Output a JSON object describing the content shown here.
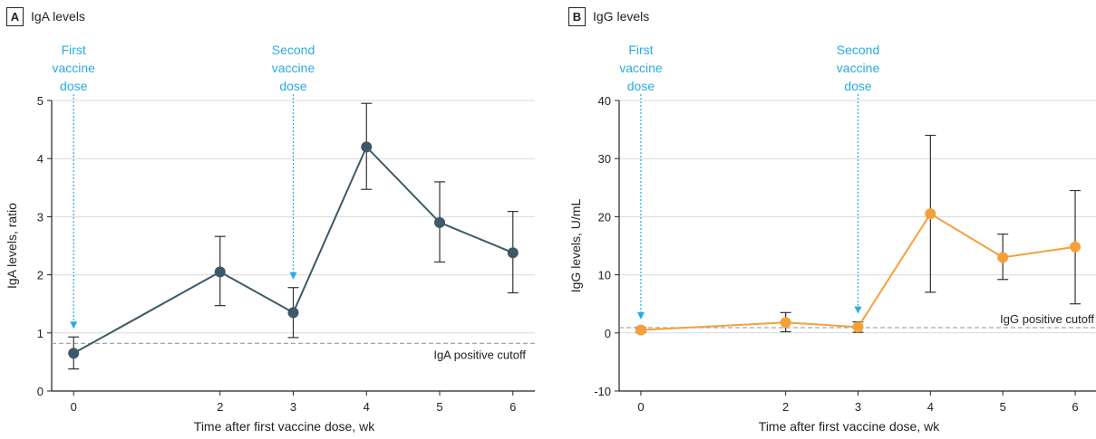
{
  "chart_data": [
    {
      "type": "line",
      "panel_letter": "A",
      "title": "IgA levels",
      "xlabel": "Time after first vaccine dose, wk",
      "ylabel": "IgA levels, ratio",
      "ylim": [
        0,
        5
      ],
      "xlim": [
        -0.3,
        6.3
      ],
      "x_ticks": [
        "0",
        "2",
        "3",
        "4",
        "5",
        "6"
      ],
      "y_ticks": [
        "0",
        "1",
        "2",
        "3",
        "4",
        "5"
      ],
      "grid": true,
      "color": "#3d5967",
      "series": [
        {
          "x": [
            0,
            2,
            3,
            4,
            5,
            6
          ],
          "values": [
            0.65,
            2.05,
            1.35,
            4.2,
            2.9,
            2.38
          ],
          "lower": [
            0.38,
            1.47,
            0.92,
            3.47,
            2.22,
            1.69
          ],
          "upper": [
            0.93,
            2.66,
            1.78,
            4.95,
            3.6,
            3.09
          ]
        }
      ],
      "cutoff": {
        "value": 0.82,
        "label": "IgA positive cutoff"
      },
      "annotations": [
        {
          "x": 0,
          "lines": [
            "First",
            "vaccine",
            "dose"
          ]
        },
        {
          "x": 3,
          "lines": [
            "Second",
            "vaccine",
            "dose"
          ]
        }
      ]
    },
    {
      "type": "line",
      "panel_letter": "B",
      "title": "IgG levels",
      "xlabel": "Time after first vaccine dose, wk",
      "ylabel": "IgG levels, U/mL",
      "ylim": [
        -10,
        40
      ],
      "xlim": [
        -0.3,
        6.3
      ],
      "x_ticks": [
        "0",
        "2",
        "3",
        "4",
        "5",
        "6"
      ],
      "y_ticks": [
        "-10",
        "0",
        "10",
        "20",
        "30",
        "40"
      ],
      "grid": true,
      "color": "#f5a03a",
      "series": [
        {
          "x": [
            0,
            2,
            3,
            4,
            5,
            6
          ],
          "values": [
            0.5,
            1.8,
            1.0,
            20.5,
            13.0,
            14.8
          ],
          "lower": [
            0.1,
            0.2,
            0.1,
            7.0,
            9.2,
            5.0
          ],
          "upper": [
            0.9,
            3.5,
            1.9,
            34.0,
            17.0,
            24.5
          ]
        }
      ],
      "cutoff": {
        "value": 0.9,
        "label": "IgG positive cutoff"
      },
      "annotations": [
        {
          "x": 0,
          "lines": [
            "First",
            "vaccine",
            "dose"
          ]
        },
        {
          "x": 3,
          "lines": [
            "Second",
            "vaccine",
            "dose"
          ]
        }
      ]
    }
  ],
  "colors": {
    "annotation": "#29abe2",
    "grid": "#d9d9d9",
    "cutoff": "#a6a6a6",
    "axis": "#222222",
    "errorbar": "#333333"
  }
}
